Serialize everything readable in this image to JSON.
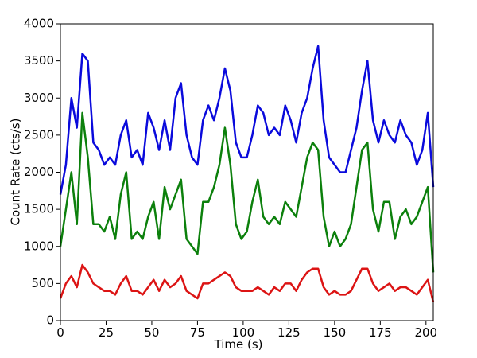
{
  "chart_data": {
    "type": "line",
    "xlabel": "Time (s)",
    "ylabel": "Count Rate (cts/s)",
    "x": [
      0,
      3,
      6,
      9,
      12,
      15,
      18,
      21,
      24,
      27,
      30,
      33,
      36,
      39,
      42,
      45,
      48,
      51,
      54,
      57,
      60,
      63,
      66,
      69,
      72,
      75,
      78,
      81,
      84,
      87,
      90,
      93,
      96,
      99,
      102,
      105,
      108,
      111,
      114,
      117,
      120,
      123,
      126,
      129,
      132,
      135,
      138,
      141,
      144,
      147,
      150,
      153,
      156,
      159,
      162,
      165,
      168,
      171,
      174,
      177,
      180,
      183,
      186,
      189,
      192,
      195,
      198,
      201,
      204
    ],
    "series": [
      {
        "color": "#0a0adc",
        "values": [
          1700,
          2100,
          3000,
          2600,
          3600,
          3500,
          2400,
          2300,
          2100,
          2200,
          2100,
          2500,
          2700,
          2200,
          2300,
          2100,
          2800,
          2600,
          2300,
          2700,
          2300,
          3000,
          3200,
          2500,
          2200,
          2100,
          2700,
          2900,
          2700,
          3000,
          3400,
          3100,
          2400,
          2200,
          2200,
          2500,
          2900,
          2800,
          2500,
          2600,
          2500,
          2900,
          2700,
          2400,
          2800,
          3000,
          3400,
          3700,
          2700,
          2200,
          2100,
          2000,
          2000,
          2300,
          2600,
          3100,
          3500,
          2700,
          2400,
          2700,
          2500,
          2400,
          2700,
          2500,
          2400,
          2100,
          2300,
          2800,
          1800
        ]
      },
      {
        "color": "#0c800c",
        "values": [
          1000,
          1500,
          2000,
          1300,
          2800,
          2200,
          1300,
          1300,
          1200,
          1400,
          1100,
          1700,
          2000,
          1100,
          1200,
          1100,
          1400,
          1600,
          1100,
          1800,
          1500,
          1700,
          1900,
          1100,
          1000,
          900,
          1600,
          1600,
          1800,
          2100,
          2600,
          2100,
          1300,
          1100,
          1200,
          1600,
          1900,
          1400,
          1300,
          1400,
          1300,
          1600,
          1500,
          1400,
          1800,
          2200,
          2400,
          2300,
          1400,
          1000,
          1200,
          1000,
          1100,
          1300,
          1800,
          2300,
          2400,
          1500,
          1200,
          1600,
          1600,
          1100,
          1400,
          1500,
          1300,
          1400,
          1600,
          1800,
          650
        ]
      },
      {
        "color": "#dc1414",
        "values": [
          300,
          500,
          600,
          450,
          750,
          650,
          500,
          450,
          400,
          400,
          350,
          500,
          600,
          400,
          400,
          350,
          450,
          550,
          400,
          550,
          450,
          500,
          600,
          400,
          350,
          300,
          500,
          500,
          550,
          600,
          650,
          600,
          450,
          400,
          400,
          400,
          450,
          400,
          350,
          450,
          400,
          500,
          500,
          400,
          550,
          650,
          700,
          700,
          450,
          350,
          400,
          350,
          350,
          400,
          550,
          700,
          700,
          500,
          400,
          450,
          500,
          400,
          450,
          450,
          400,
          350,
          450,
          550,
          250
        ]
      }
    ],
    "xlim": [
      0,
      204
    ],
    "xticks": [
      0,
      25,
      50,
      75,
      100,
      125,
      150,
      175,
      200
    ],
    "ylim": [
      0,
      4000
    ],
    "yticks": [
      0,
      500,
      1000,
      1500,
      2000,
      2500,
      3000,
      3500,
      4000
    ]
  }
}
